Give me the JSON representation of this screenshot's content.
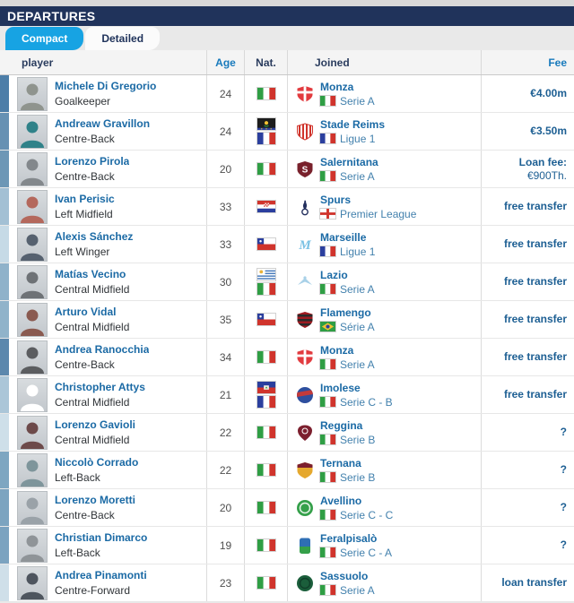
{
  "header": {
    "title": "DEPARTURES"
  },
  "tabs": [
    {
      "label": "Compact",
      "active": true
    },
    {
      "label": "Detailed",
      "active": false
    }
  ],
  "colors": {
    "title_bar": "#20335b",
    "active_tab": "#17a3e3",
    "link_blue": "#1b6aa5",
    "league_link": "#4381ad",
    "fee_text": "#1d5f93",
    "header_link": "#187abc"
  },
  "table": {
    "columns": {
      "player": "player",
      "age": "Age",
      "nat": "Nat.",
      "joined": "Joined",
      "fee": "Fee"
    },
    "rows": [
      {
        "name": "Michele Di Gregorio",
        "position": "Goalkeeper",
        "age": "24",
        "nats": [
          "it"
        ],
        "club": "Monza",
        "league": "Serie A",
        "league_flag": "it",
        "badge": {
          "type": "shield",
          "fill": "#e23b3f",
          "detail": "cross",
          "dc": "#ffffff"
        },
        "fee": "€4.00m",
        "fee_sub": "",
        "bar_color": "#4d7ea8",
        "photo_tone": "#8f948e",
        "photo_style": "photo"
      },
      {
        "name": "Andreaw Gravillon",
        "position": "Centre-Back",
        "age": "24",
        "nats": [
          "gp",
          "fr"
        ],
        "club": "Stade Reims",
        "league": "Ligue 1",
        "league_flag": "fr",
        "badge": {
          "type": "shield",
          "fill": "#ffffff",
          "detail": "vstripes",
          "dc": "#d0342c",
          "stroke": "#d0342c"
        },
        "fee": "€3.50m",
        "fee_sub": "",
        "bar_color": "#6691b3",
        "photo_tone": "#2f8289",
        "photo_style": "photo"
      },
      {
        "name": "Lorenzo Pirola",
        "position": "Centre-Back",
        "age": "20",
        "nats": [
          "it"
        ],
        "club": "Salernitana",
        "league": "Serie A",
        "league_flag": "it",
        "badge": {
          "type": "shield",
          "fill": "#79212c",
          "detail": "letter",
          "letter": "S",
          "dc": "#ffffff"
        },
        "fee": "Loan fee:",
        "fee_sub": "€900Th.",
        "bar_color": "#6d97b6",
        "photo_tone": "#83888c",
        "photo_style": "photo"
      },
      {
        "name": "Ivan Perisic",
        "position": "Left Midfield",
        "age": "33",
        "nats": [
          "hr"
        ],
        "club": "Spurs",
        "league": "Premier League",
        "league_flag": "en",
        "badge": {
          "type": "bird",
          "fill": "#24305e"
        },
        "fee": "free transfer",
        "fee_sub": "",
        "bar_color": "#a3c0d4",
        "photo_tone": "#b4685c",
        "photo_style": "photo"
      },
      {
        "name": "Alexis Sánchez",
        "position": "Left Winger",
        "age": "33",
        "nats": [
          "cl"
        ],
        "club": "Marseille",
        "league": "Ligue 1",
        "league_flag": "fr",
        "badge": {
          "type": "letter",
          "letter": "M",
          "fill": "#79c1e4"
        },
        "fee": "free transfer",
        "fee_sub": "",
        "bar_color": "#c6dae6",
        "photo_tone": "#56616f",
        "photo_style": "photo"
      },
      {
        "name": "Matías Vecino",
        "position": "Central Midfield",
        "age": "30",
        "nats": [
          "uy",
          "it"
        ],
        "club": "Lazio",
        "league": "Serie A",
        "league_flag": "it",
        "badge": {
          "type": "eagle",
          "fill": "#a9d1e8"
        },
        "fee": "free transfer",
        "fee_sub": "",
        "bar_color": "#8fb2ca",
        "photo_tone": "#6e7276",
        "photo_style": "photo"
      },
      {
        "name": "Arturo Vidal",
        "position": "Central Midfield",
        "age": "35",
        "nats": [
          "cl"
        ],
        "club": "Flamengo",
        "league": "Série A",
        "league_flag": "br",
        "badge": {
          "type": "shield",
          "fill": "#9e1b21",
          "detail": "hstripes",
          "dc": "#2a2a2a"
        },
        "fee": "free transfer",
        "fee_sub": "",
        "bar_color": "#90b3ca",
        "photo_tone": "#8a5a50",
        "photo_style": "photo"
      },
      {
        "name": "Andrea Ranocchia",
        "position": "Centre-Back",
        "age": "34",
        "nats": [
          "it"
        ],
        "club": "Monza",
        "league": "Serie A",
        "league_flag": "it",
        "badge": {
          "type": "shield",
          "fill": "#e23b3f",
          "detail": "cross",
          "dc": "#ffffff"
        },
        "fee": "free transfer",
        "fee_sub": "",
        "bar_color": "#5c88ad",
        "photo_tone": "#5b5d60",
        "photo_style": "photo"
      },
      {
        "name": "Christopher Attys",
        "position": "Central Midfield",
        "age": "21",
        "nats": [
          "ht",
          "fr"
        ],
        "club": "Imolese",
        "league": "Serie C - B",
        "league_flag": "it",
        "badge": {
          "type": "circle",
          "fill": "#2e4f9e",
          "detail": "band",
          "dc": "#c23a3a"
        },
        "fee": "free transfer",
        "fee_sub": "",
        "bar_color": "#abc6d8",
        "photo_tone": "#ffffff",
        "photo_style": "silhouette"
      },
      {
        "name": "Lorenzo Gavioli",
        "position": "Central Midfield",
        "age": "22",
        "nats": [
          "it"
        ],
        "club": "Reggina",
        "league": "Serie B",
        "league_flag": "it",
        "badge": {
          "type": "drop",
          "fill": "#7c1f2e"
        },
        "fee": "?",
        "fee_sub": "",
        "bar_color": "#cedfe9",
        "photo_tone": "#6d4a4a",
        "photo_style": "photo"
      },
      {
        "name": "Niccolò Corrado",
        "position": "Left-Back",
        "age": "22",
        "nats": [
          "it"
        ],
        "club": "Ternana",
        "league": "Serie B",
        "league_flag": "it",
        "badge": {
          "type": "shield",
          "fill": "#e5a82e",
          "detail": "chief",
          "dc": "#7c1f2e"
        },
        "fee": "?",
        "fee_sub": "",
        "bar_color": "#7ea6c1",
        "photo_tone": "#7e959b",
        "photo_style": "photo"
      },
      {
        "name": "Lorenzo Moretti",
        "position": "Centre-Back",
        "age": "20",
        "nats": [
          "it"
        ],
        "club": "Avellino",
        "league": "Serie C - C",
        "league_flag": "it",
        "badge": {
          "type": "circle",
          "fill": "#35a04a",
          "detail": "innerring",
          "dc": "#e8f5ea"
        },
        "fee": "?",
        "fee_sub": "",
        "bar_color": "#7ca4c0",
        "photo_tone": "#9aa2a8",
        "photo_style": "photo"
      },
      {
        "name": "Christian Dimarco",
        "position": "Left-Back",
        "age": "19",
        "nats": [
          "it"
        ],
        "club": "Feralpisalò",
        "league": "Serie C - A",
        "league_flag": "it",
        "badge": {
          "type": "rect",
          "fill": "#2e6fb5",
          "detail": "bottom",
          "dc": "#35a04a"
        },
        "fee": "?",
        "fee_sub": "",
        "bar_color": "#7ba3c0",
        "photo_tone": "#8f9498",
        "photo_style": "photo"
      },
      {
        "name": "Andrea Pinamonti",
        "position": "Centre-Forward",
        "age": "23",
        "nats": [
          "it"
        ],
        "club": "Sassuolo",
        "league": "Serie A",
        "league_flag": "it",
        "badge": {
          "type": "circle",
          "fill": "#1b5e3b",
          "detail": "innerring",
          "dc": "#10402a"
        },
        "fee": "loan transfer",
        "fee_sub": "",
        "bar_color": "#cfdfe9",
        "photo_tone": "#4e555e",
        "photo_style": "photo"
      }
    ]
  }
}
